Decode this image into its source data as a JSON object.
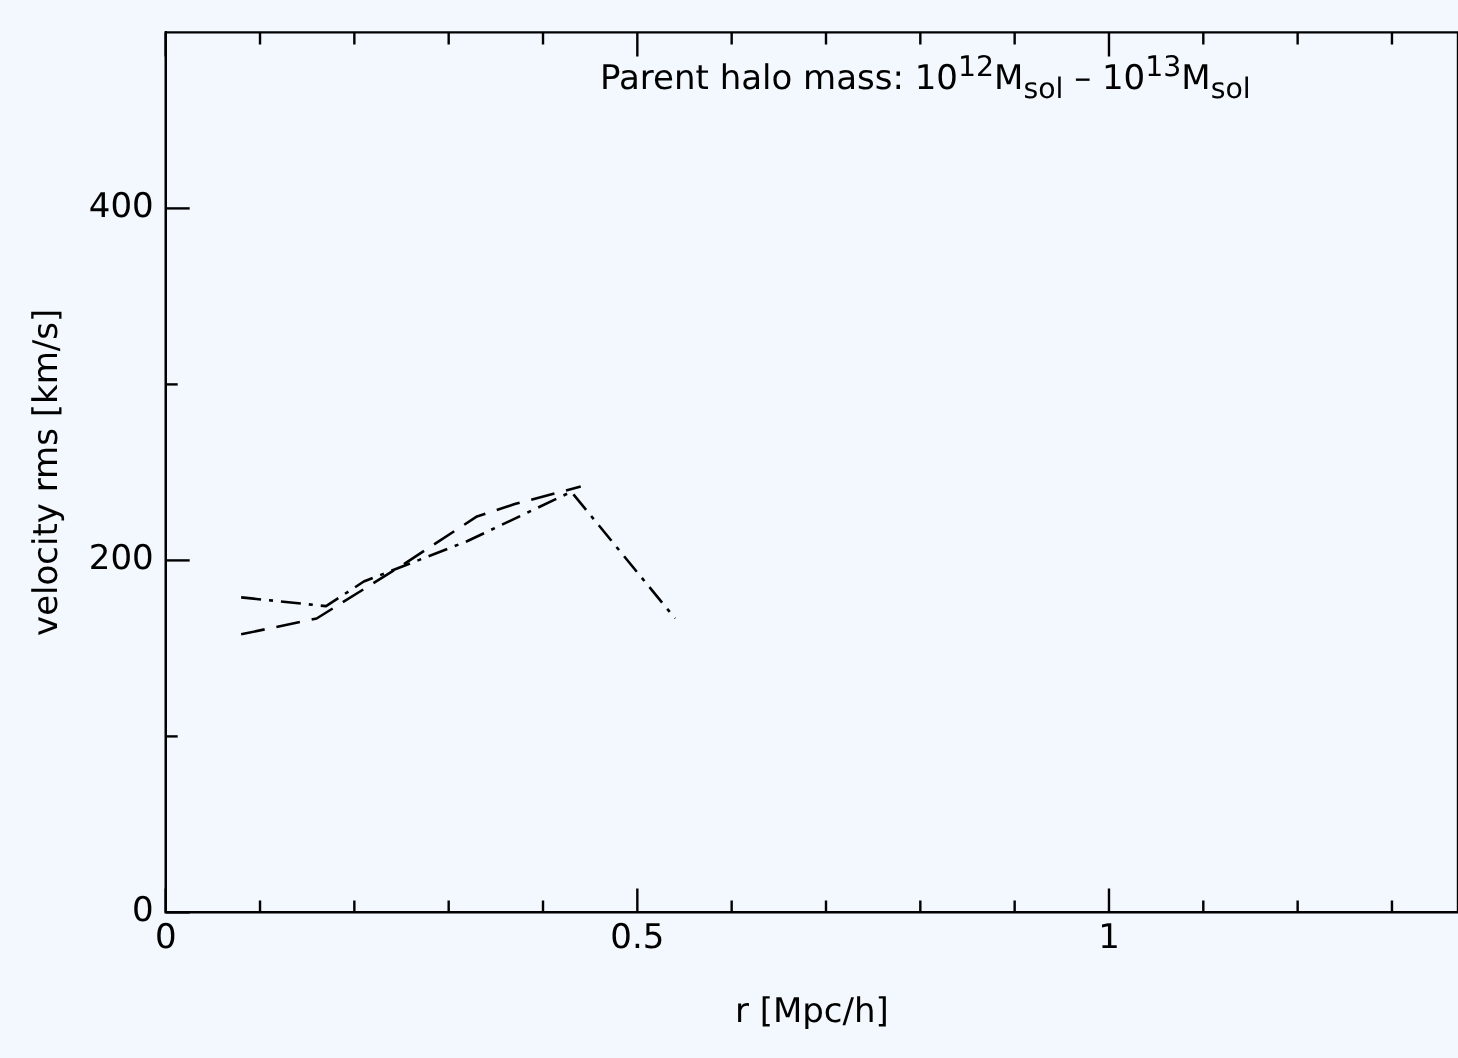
{
  "chart_data": {
    "type": "line",
    "title": "Parent halo mass: 10$^{12}$M$_{sol}$ – 10$^{13}$M$_{sol}$",
    "xlabel": "r [Mpc/h]",
    "ylabel": "velocity rms [km/s]",
    "series": [
      {
        "color": "#000000",
        "line_style": "dashed",
        "x": [
          0.08,
          0.16,
          0.25,
          0.33,
          0.37,
          0.44
        ],
        "values": [
          158,
          167,
          197,
          225,
          232,
          242
        ]
      },
      {
        "color": "#000000",
        "line_style": "dashdot",
        "x": [
          0.08,
          0.17,
          0.21,
          0.32,
          0.43,
          0.54
        ],
        "values": [
          179,
          174,
          188,
          211,
          239,
          167
        ]
      }
    ],
    "xlim": [
      0,
      1.37
    ],
    "xticks": [
      0,
      {
        "value": 0.1,
        "label": null
      },
      {
        "value": 0.2,
        "label": null
      },
      {
        "value": 0.3,
        "label": null
      },
      {
        "value": 0.4,
        "label": null
      },
      0.5,
      {
        "value": 0.6,
        "label": null
      },
      {
        "value": 0.7,
        "label": null
      },
      {
        "value": 0.8,
        "label": null
      },
      {
        "value": 0.9,
        "label": null
      },
      1,
      {
        "value": 1.1,
        "label": null
      },
      {
        "value": 1.2,
        "label": null
      },
      {
        "value": 1.3,
        "label": null
      }
    ],
    "ylim": [
      0,
      500
    ],
    "yticks": [
      0,
      {
        "value": 100,
        "label": null
      },
      200,
      {
        "value": 300,
        "label": null
      },
      400
    ],
    "grid": false,
    "legend": false,
    "marker": "none"
  }
}
